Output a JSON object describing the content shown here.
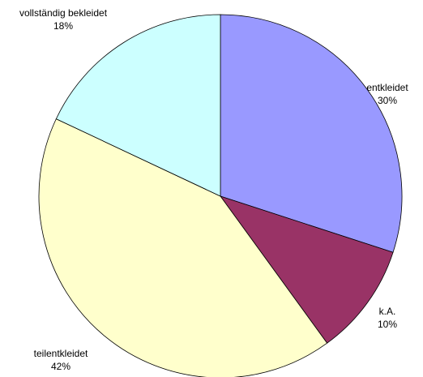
{
  "chart_data": {
    "type": "pie",
    "slices": [
      {
        "label": "entkleidet",
        "value": 30,
        "value_label": "30%",
        "color": "#9999ff"
      },
      {
        "label": "k.A.",
        "value": 10,
        "value_label": "10%",
        "color": "#993366"
      },
      {
        "label": "teilentkleidet",
        "value": 42,
        "value_label": "42%",
        "color": "#ffffcc"
      },
      {
        "label": "vollständig bekleidet",
        "value": 18,
        "value_label": "18%",
        "color": "#ccffff"
      }
    ]
  }
}
